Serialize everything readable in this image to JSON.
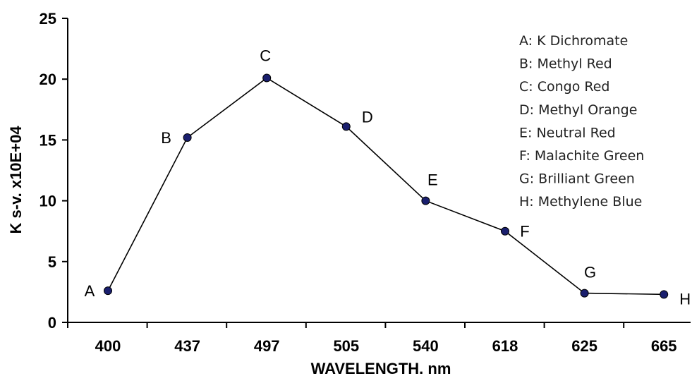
{
  "chart_data": {
    "type": "line",
    "title": "",
    "xlabel": "WAVELENGTH. nm",
    "ylabel": "K s-v. x10E+04",
    "categories": [
      "400",
      "437",
      "497",
      "505",
      "540",
      "618",
      "625",
      "665"
    ],
    "point_labels": [
      "A",
      "B",
      "C",
      "D",
      "E",
      "F",
      "G",
      "H"
    ],
    "series": [
      {
        "values": [
          2.6,
          15.2,
          20.1,
          16.1,
          10.0,
          7.5,
          2.4,
          2.3
        ]
      }
    ],
    "ylim": [
      0,
      25
    ],
    "yticks": [
      "0",
      "5",
      "10",
      "15",
      "20",
      "25"
    ],
    "grid": false,
    "legend_position": "top-right",
    "legend": [
      "A: K Dichromate",
      "B: Methyl Red",
      "C: Congo Red",
      "D: Methyl Orange",
      "E: Neutral Red",
      "F: Malachite Green",
      "G: Brilliant Green",
      "H: Methylene Blue"
    ],
    "colors": {
      "line": "#000000",
      "marker": "#1a1f6e"
    }
  }
}
